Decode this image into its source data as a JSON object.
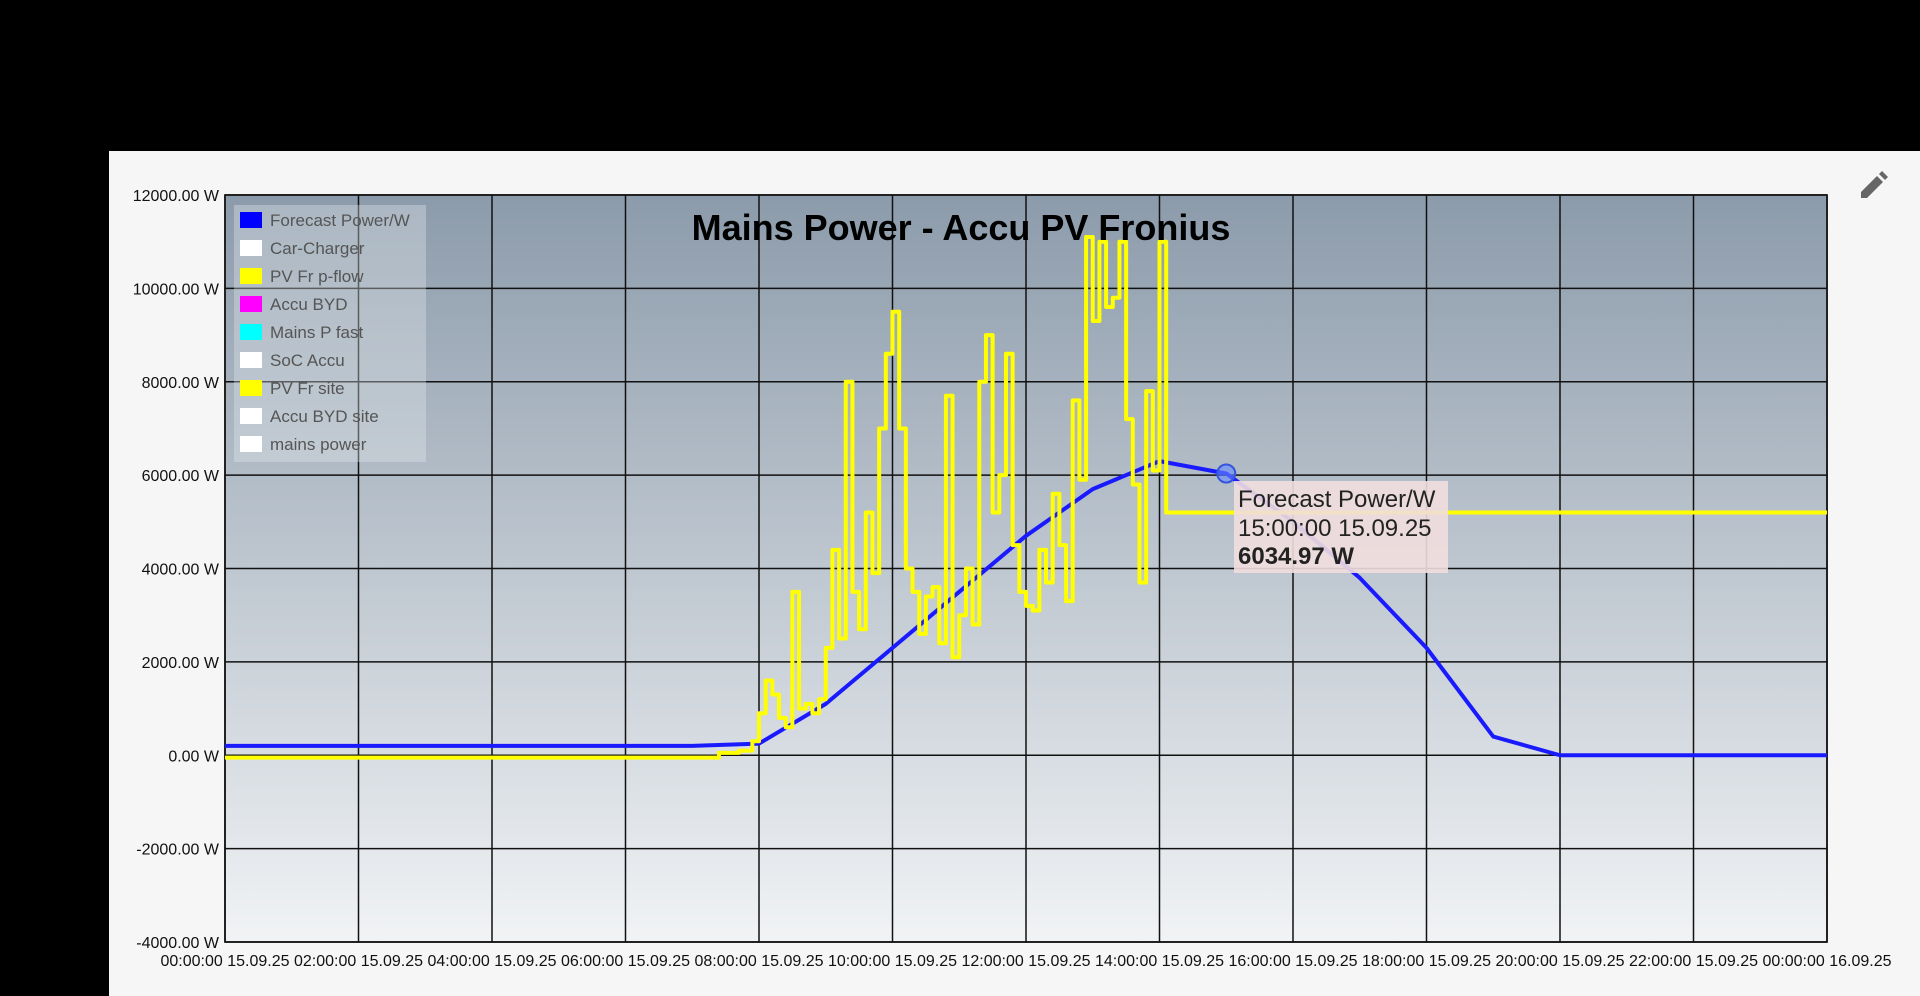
{
  "chart_data": {
    "type": "line",
    "title": "Mains Power - Accu PV Fronius",
    "ylim": [
      -4000,
      12000
    ],
    "y_ticks": [
      12000,
      10000,
      8000,
      6000,
      4000,
      2000,
      0,
      -2000,
      -4000
    ],
    "y_tick_labels": [
      "12000.00 W",
      "10000.00 W",
      "8000.00 W",
      "6000.00 W",
      "4000.00 W",
      "2000.00 W",
      "0.00 W",
      "-2000.00 W",
      "-4000.00 W"
    ],
    "xlim": [
      0,
      24
    ],
    "x_ticks": [
      0,
      2,
      4,
      6,
      8,
      10,
      12,
      14,
      16,
      18,
      20,
      22,
      24
    ],
    "x_tick_labels": [
      "00:00:00 15.09.25",
      "02:00:00 15.09.25",
      "04:00:00 15.09.25",
      "06:00:00 15.09.25",
      "08:00:00 15.09.25",
      "10:00:00 15.09.25",
      "12:00:00 15.09.25",
      "14:00:00 15.09.25",
      "16:00:00 15.09.25",
      "18:00:00 15.09.25",
      "20:00:00 15.09.25",
      "22:00:00 15.09.25",
      "00:00:00 16.09.25"
    ],
    "grid": true,
    "legend_position": "top-left",
    "legend": [
      {
        "name": "Forecast Power/W",
        "color": "#0000ff"
      },
      {
        "name": "Car-Charger",
        "color": "#ffffff"
      },
      {
        "name": "PV Fr p-flow",
        "color": "#ffff00"
      },
      {
        "name": "Accu BYD",
        "color": "#ff00ff"
      },
      {
        "name": "Mains P fast",
        "color": "#00ffff"
      },
      {
        "name": "SoC Accu",
        "color": "#ffffff"
      },
      {
        "name": "PV Fr site",
        "color": "#ffff00"
      },
      {
        "name": "Accu BYD site",
        "color": "#ffffff"
      },
      {
        "name": "mains power",
        "color": "#ffffff"
      }
    ],
    "series": [
      {
        "name": "Forecast Power/W",
        "color": "#1a1aff",
        "x": [
          0,
          7.0,
          8.0,
          9.0,
          10.0,
          11.0,
          12.0,
          13.0,
          14.0,
          15.0,
          16.0,
          17.0,
          18.0,
          19.0,
          20.0,
          24.0
        ],
        "y": [
          200,
          200,
          250,
          1100,
          2300,
          3500,
          4700,
          5700,
          6300,
          6034.97,
          5000,
          3800,
          2300,
          400,
          0,
          0
        ]
      },
      {
        "name": "PV Fr site",
        "color": "#ffff00",
        "step": true,
        "x": [
          0,
          7.0,
          7.4,
          7.7,
          7.9,
          8.0,
          8.1,
          8.2,
          8.3,
          8.4,
          8.5,
          8.6,
          8.7,
          8.8,
          8.9,
          9.0,
          9.1,
          9.2,
          9.3,
          9.4,
          9.5,
          9.6,
          9.7,
          9.8,
          9.9,
          10.0,
          10.1,
          10.2,
          10.3,
          10.4,
          10.5,
          10.6,
          10.7,
          10.8,
          10.9,
          11.0,
          11.1,
          11.2,
          11.3,
          11.4,
          11.5,
          11.6,
          11.7,
          11.8,
          11.9,
          12.0,
          12.1,
          12.2,
          12.3,
          12.4,
          12.5,
          12.6,
          12.7,
          12.8,
          12.9,
          13.0,
          13.1,
          13.2,
          13.3,
          13.4,
          13.5,
          13.6,
          13.7,
          13.8,
          13.9,
          14.0,
          14.1,
          14.2,
          14.3,
          14.4,
          14.5,
          14.6,
          14.7,
          14.8,
          14.9,
          15.0,
          15.4,
          24.0
        ],
        "y": [
          -50,
          -50,
          50,
          100,
          300,
          900,
          1600,
          1300,
          800,
          600,
          3500,
          1000,
          1100,
          900,
          1200,
          2300,
          4400,
          2500,
          8000,
          3500,
          2700,
          5200,
          3900,
          7000,
          8600,
          9500,
          7000,
          4000,
          3500,
          2600,
          3400,
          3600,
          2400,
          7700,
          2100,
          3000,
          4000,
          2800,
          8000,
          9000,
          5200,
          6000,
          8600,
          4500,
          3500,
          3200,
          3100,
          4400,
          3700,
          5600,
          4500,
          3300,
          7600,
          5900,
          11100,
          9300,
          11000,
          9600,
          9800,
          11000,
          7200,
          5800,
          3700,
          7800,
          6100,
          11000,
          5200,
          5200,
          5200,
          5200,
          5200,
          5200,
          5200,
          5200,
          5200,
          5200,
          5200,
          5200
        ]
      }
    ],
    "tooltip": {
      "series": "Forecast Power/W",
      "time": "15:00:00 15.09.25",
      "value": "6034.97 W",
      "x": 15.0,
      "y": 6034.97
    }
  },
  "toolbar": {
    "edit_icon": "pencil-icon"
  }
}
